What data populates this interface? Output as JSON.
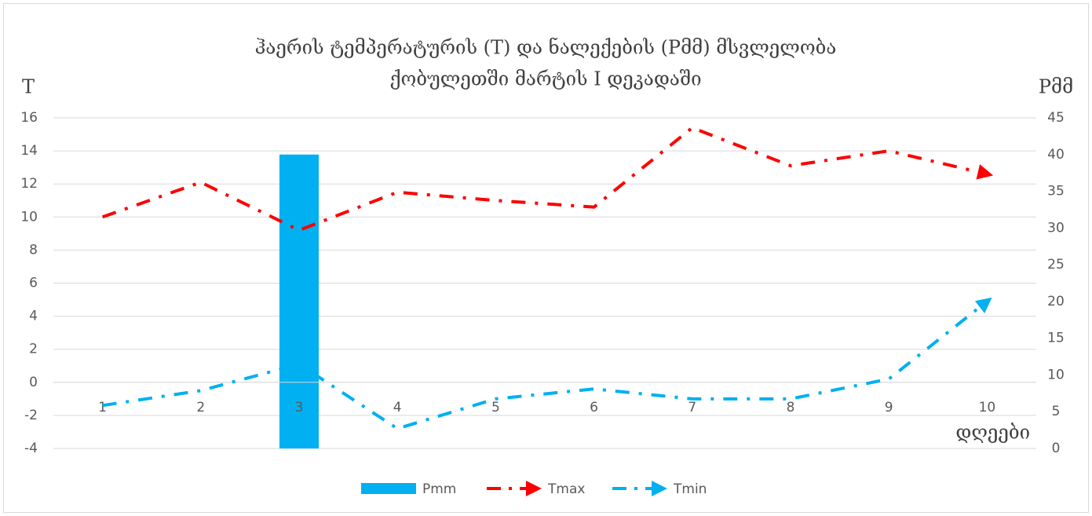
{
  "chart_data": {
    "type": "combo",
    "title": "ჰაერის ტემპერატურის (T) და ნალექების (Pმმ) მსვლელობა",
    "subtitle": "ქობულეთში მარტის I დეკადაში",
    "y_label": "T",
    "y2_label": "Pმმ",
    "x_label": "დღეები",
    "categories": [
      "1",
      "2",
      "3",
      "4",
      "5",
      "6",
      "7",
      "8",
      "9",
      "10"
    ],
    "series": [
      {
        "name": "Pmm",
        "type": "bar",
        "axis": "y2",
        "color": "#00b0f0",
        "values": [
          0,
          0,
          40,
          0,
          0,
          0,
          0,
          0,
          0,
          0
        ]
      },
      {
        "name": "Tmax",
        "type": "line",
        "color": "#ff0000",
        "values": [
          10,
          12.1,
          9.2,
          11.5,
          11,
          10.6,
          15.4,
          13.1,
          14,
          12.6
        ]
      },
      {
        "name": "Tmin",
        "type": "line",
        "color": "#00b0f0",
        "values": [
          -1.4,
          -0.5,
          1.1,
          -2.8,
          -1.0,
          -0.4,
          -1.0,
          -1.0,
          0.2,
          4.9
        ]
      }
    ],
    "ylim": [
      -4,
      16
    ],
    "yticks": [
      -4,
      -2,
      0,
      2,
      4,
      6,
      8,
      10,
      12,
      14,
      16
    ],
    "y2lim": [
      0,
      45
    ],
    "y2ticks": [
      0,
      5,
      10,
      15,
      20,
      25,
      30,
      35,
      40,
      45
    ],
    "grid": true,
    "legend": "bottom"
  }
}
